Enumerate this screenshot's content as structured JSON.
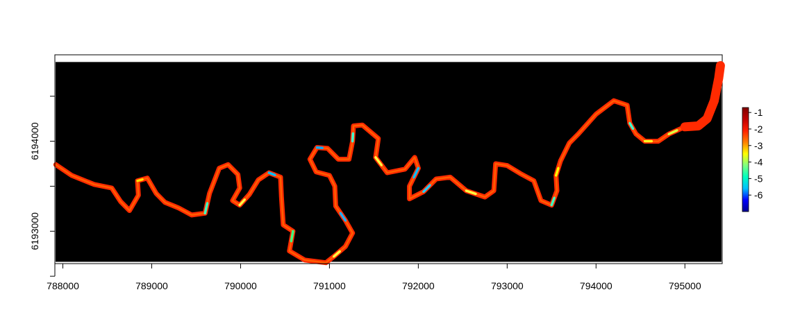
{
  "chart_data": {
    "type": "heatmap",
    "title": "",
    "xlabel": "",
    "ylabel": "",
    "x_ticks": [
      "788000",
      "789000",
      "790000",
      "791000",
      "792000",
      "793000",
      "794000",
      "795000"
    ],
    "y_ticks": [
      "6193000",
      "6194000"
    ],
    "xlim": [
      787910,
      795420
    ],
    "ylim": [
      6192640,
      6194960
    ],
    "raster_extent": {
      "y_top": 6194880,
      "y_bottom": 6192660
    },
    "background_color": "#000000",
    "colorbar": {
      "labels": [
        "-1",
        "-2",
        "-3",
        "-4",
        "-5",
        "-6"
      ],
      "range": [
        -7,
        -0.7
      ],
      "colors": [
        "#00008f",
        "#0000ff",
        "#00bfff",
        "#00ffbf",
        "#80ff80",
        "#ffff00",
        "#ff8000",
        "#ff2000",
        "#c00000",
        "#800000"
      ]
    },
    "river_centerline": [
      [
        787920,
        6193740
      ],
      [
        788100,
        6193620
      ],
      [
        788350,
        6193520
      ],
      [
        788550,
        6193480
      ],
      [
        788650,
        6193330
      ],
      [
        788750,
        6193230
      ],
      [
        788850,
        6193400
      ],
      [
        788840,
        6193560
      ],
      [
        788950,
        6193590
      ],
      [
        789050,
        6193420
      ],
      [
        789150,
        6193320
      ],
      [
        789300,
        6193260
      ],
      [
        789450,
        6193180
      ],
      [
        789600,
        6193200
      ],
      [
        789650,
        6193420
      ],
      [
        789760,
        6193700
      ],
      [
        789860,
        6193740
      ],
      [
        789970,
        6193630
      ],
      [
        789990,
        6193480
      ],
      [
        789910,
        6193340
      ],
      [
        789990,
        6193290
      ],
      [
        790100,
        6193410
      ],
      [
        790200,
        6193570
      ],
      [
        790320,
        6193650
      ],
      [
        790450,
        6193600
      ],
      [
        790460,
        6193380
      ],
      [
        790480,
        6193070
      ],
      [
        790590,
        6193000
      ],
      [
        790550,
        6192780
      ],
      [
        790720,
        6192680
      ],
      [
        790960,
        6192650
      ],
      [
        791050,
        6192720
      ],
      [
        791180,
        6192830
      ],
      [
        791260,
        6192980
      ],
      [
        791180,
        6193120
      ],
      [
        791070,
        6193280
      ],
      [
        791060,
        6193500
      ],
      [
        791000,
        6193620
      ],
      [
        790850,
        6193660
      ],
      [
        790780,
        6193800
      ],
      [
        790860,
        6193930
      ],
      [
        790980,
        6193920
      ],
      [
        791100,
        6193800
      ],
      [
        791220,
        6193800
      ],
      [
        791260,
        6194000
      ],
      [
        791270,
        6194170
      ],
      [
        791370,
        6194180
      ],
      [
        791550,
        6194030
      ],
      [
        791520,
        6193820
      ],
      [
        791650,
        6193650
      ],
      [
        791850,
        6193690
      ],
      [
        791960,
        6193820
      ],
      [
        792000,
        6193700
      ],
      [
        791900,
        6193500
      ],
      [
        791900,
        6193360
      ],
      [
        792060,
        6193440
      ],
      [
        792200,
        6193580
      ],
      [
        792360,
        6193600
      ],
      [
        792540,
        6193450
      ],
      [
        792750,
        6193380
      ],
      [
        792850,
        6193450
      ],
      [
        792870,
        6193750
      ],
      [
        793000,
        6193730
      ],
      [
        793150,
        6193640
      ],
      [
        793300,
        6193560
      ],
      [
        793380,
        6193340
      ],
      [
        793500,
        6193290
      ],
      [
        793560,
        6193450
      ],
      [
        793550,
        6193620
      ],
      [
        793600,
        6193780
      ],
      [
        793700,
        6193980
      ],
      [
        793800,
        6194080
      ],
      [
        794000,
        6194300
      ],
      [
        794200,
        6194450
      ],
      [
        794350,
        6194400
      ],
      [
        794380,
        6194200
      ],
      [
        794450,
        6194080
      ],
      [
        794550,
        6194000
      ],
      [
        794700,
        6194000
      ],
      [
        794820,
        6194080
      ],
      [
        795000,
        6194160
      ],
      [
        795150,
        6194170
      ],
      [
        795250,
        6194250
      ],
      [
        795330,
        6194450
      ],
      [
        795380,
        6194700
      ],
      [
        795400,
        6194840
      ]
    ]
  }
}
